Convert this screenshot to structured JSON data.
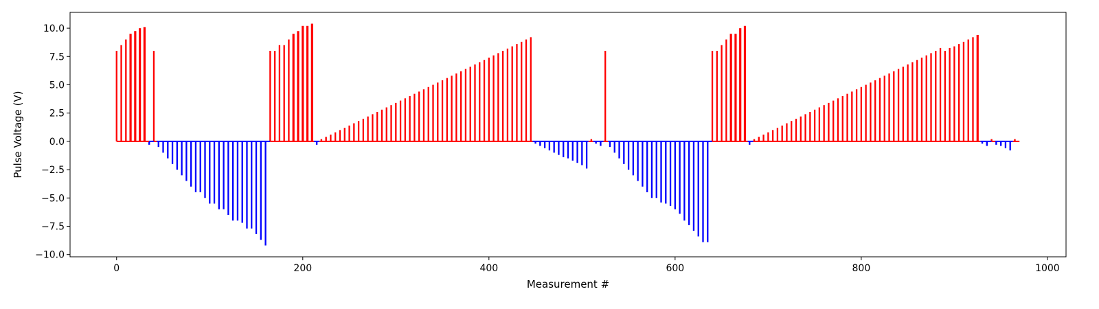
{
  "chart_data": {
    "type": "bar",
    "title": "",
    "xlabel": "Measurement #",
    "ylabel": "Pulse Voltage (V)",
    "xlim": [
      -50,
      1020
    ],
    "ylim": [
      -10.2,
      11.4
    ],
    "x_ticks": [
      0,
      200,
      400,
      600,
      800,
      1000
    ],
    "x_tick_labels": [
      "0",
      "200",
      "400",
      "600",
      "800",
      "1000"
    ],
    "y_ticks": [
      10,
      7.5,
      5,
      2.5,
      0,
      -2.5,
      -5,
      -7.5,
      -10
    ],
    "y_tick_labels": [
      "10.0",
      "7.5",
      "5.0",
      "2.5",
      "0.0",
      "−2.5",
      "−5.0",
      "−7.5",
      "−10.0"
    ],
    "grid": false,
    "legend": "none",
    "colors": {
      "positive": "#ff0000",
      "negative": "#0000ff",
      "axes": "#000000"
    },
    "baseline_segments": [
      {
        "color": "#ff0000",
        "x": [
          0,
          35
        ]
      },
      {
        "color": "#0000ff",
        "x": [
          35,
          40
        ]
      },
      {
        "color": "#ff0000",
        "x": [
          40,
          43
        ]
      },
      {
        "color": "#0000ff",
        "x": [
          43,
          165
        ]
      },
      {
        "color": "#ff0000",
        "x": [
          165,
          212
        ]
      },
      {
        "color": "#0000ff",
        "x": [
          212,
          218
        ]
      },
      {
        "color": "#ff0000",
        "x": [
          218,
          447
        ]
      },
      {
        "color": "#0000ff",
        "x": [
          447,
          507
        ]
      },
      {
        "color": "#ff0000",
        "x": [
          507,
          512
        ]
      },
      {
        "color": "#0000ff",
        "x": [
          512,
          523
        ]
      },
      {
        "color": "#ff0000",
        "x": [
          523,
          528
        ]
      },
      {
        "color": "#0000ff",
        "x": [
          528,
          640
        ]
      },
      {
        "color": "#ff0000",
        "x": [
          640,
          678
        ]
      },
      {
        "color": "#0000ff",
        "x": [
          678,
          684
        ]
      },
      {
        "color": "#ff0000",
        "x": [
          684,
          928
        ]
      },
      {
        "color": "#0000ff",
        "x": [
          928,
          940
        ]
      },
      {
        "color": "#ff0000",
        "x": [
          940,
          944
        ]
      },
      {
        "color": "#0000ff",
        "x": [
          944,
          963
        ]
      },
      {
        "color": "#ff0000",
        "x": [
          963,
          970
        ]
      }
    ],
    "series": [
      {
        "x": [
          0,
          5,
          10,
          15,
          20,
          25,
          30,
          35,
          40,
          45,
          50,
          55,
          60,
          65,
          70,
          75,
          80,
          85,
          90,
          95,
          100,
          105,
          110,
          115,
          120,
          125,
          130,
          135,
          140,
          145,
          150,
          155,
          160,
          165,
          170,
          175,
          180,
          185,
          190,
          195,
          200,
          205,
          210,
          215
        ],
        "values": [
          8.0,
          8.5,
          9.0,
          9.5,
          9.75,
          10.0,
          10.1,
          -0.3,
          8.0,
          -0.5,
          -1.0,
          -1.5,
          -2.0,
          -2.5,
          -3.0,
          -3.5,
          -4.0,
          -4.5,
          -4.5,
          -5.0,
          -5.5,
          -5.5,
          -6.0,
          -6.0,
          -6.5,
          -7.0,
          -7.0,
          -7.2,
          -7.7,
          -7.7,
          -8.2,
          -8.7,
          -9.2,
          8.0,
          8.0,
          8.5,
          8.5,
          9.0,
          9.5,
          9.75,
          10.2,
          10.2,
          10.4,
          -0.3
        ]
      },
      {
        "x": [
          220,
          225,
          230,
          235,
          240,
          245,
          250,
          255,
          260,
          265,
          270,
          275,
          280,
          285,
          290,
          295,
          300,
          305,
          310,
          315,
          320,
          325,
          330,
          335,
          340,
          345,
          350,
          355,
          360,
          365,
          370,
          375,
          380,
          385,
          390,
          395,
          400,
          405,
          410,
          415,
          420,
          425,
          430,
          435,
          440,
          445
        ],
        "values": [
          0.2,
          0.4,
          0.6,
          0.8,
          1.0,
          1.2,
          1.4,
          1.6,
          1.8,
          2.0,
          2.2,
          2.4,
          2.6,
          2.8,
          3.0,
          3.2,
          3.4,
          3.6,
          3.8,
          4.0,
          4.2,
          4.4,
          4.6,
          4.8,
          5.0,
          5.2,
          5.4,
          5.6,
          5.8,
          6.0,
          6.2,
          6.4,
          6.6,
          6.8,
          7.0,
          7.2,
          7.4,
          7.6,
          7.8,
          8.0,
          8.2,
          8.4,
          8.6,
          8.8,
          9.0,
          9.2
        ]
      },
      {
        "x": [
          450,
          455,
          460,
          465,
          470,
          475,
          480,
          485,
          490,
          495,
          500,
          505,
          510,
          515,
          520,
          525,
          530,
          535,
          540,
          545,
          550,
          555,
          560,
          565,
          570,
          575,
          580,
          585,
          590,
          595,
          600,
          605,
          610,
          615,
          620,
          625,
          630,
          635
        ],
        "values": [
          -0.2,
          -0.4,
          -0.6,
          -0.8,
          -1.0,
          -1.2,
          -1.4,
          -1.5,
          -1.7,
          -1.9,
          -2.1,
          -2.4,
          0.2,
          -0.2,
          -0.4,
          8.0,
          -0.5,
          -1.0,
          -1.5,
          -2.0,
          -2.5,
          -3.0,
          -3.5,
          -4.0,
          -4.5,
          -5.0,
          -5.0,
          -5.4,
          -5.5,
          -5.7,
          -6.0,
          -6.4,
          -7.0,
          -7.4,
          -7.9,
          -8.4,
          -8.9,
          -8.9
        ]
      },
      {
        "x": [
          640,
          645,
          650,
          655,
          660,
          665,
          670,
          675,
          680
        ],
        "values": [
          8.0,
          8.0,
          8.5,
          9.0,
          9.5,
          9.5,
          10.0,
          10.2,
          -0.3
        ]
      },
      {
        "x": [
          685,
          690,
          695,
          700,
          705,
          710,
          715,
          720,
          725,
          730,
          735,
          740,
          745,
          750,
          755,
          760,
          765,
          770,
          775,
          780,
          785,
          790,
          795,
          800,
          805,
          810,
          815,
          820,
          825,
          830,
          835,
          840,
          845,
          850,
          855,
          860,
          865,
          870,
          875,
          880,
          885,
          890,
          895,
          900,
          905,
          910,
          915,
          920,
          925
        ],
        "values": [
          0.2,
          0.4,
          0.6,
          0.8,
          1.0,
          1.2,
          1.4,
          1.6,
          1.8,
          2.0,
          2.2,
          2.4,
          2.6,
          2.8,
          3.0,
          3.2,
          3.4,
          3.6,
          3.8,
          4.0,
          4.2,
          4.4,
          4.6,
          4.8,
          5.0,
          5.2,
          5.4,
          5.6,
          5.8,
          6.0,
          6.2,
          6.4,
          6.6,
          6.8,
          7.0,
          7.2,
          7.4,
          7.6,
          7.8,
          8.0,
          8.25,
          8.0,
          8.25,
          8.4,
          8.6,
          8.8,
          9.0,
          9.2,
          9.4
        ]
      },
      {
        "x": [
          930,
          935,
          940,
          945,
          950,
          955,
          960,
          965
        ],
        "values": [
          -0.2,
          -0.4,
          0.2,
          -0.3,
          -0.4,
          -0.6,
          -0.8,
          0.2
        ]
      }
    ]
  }
}
